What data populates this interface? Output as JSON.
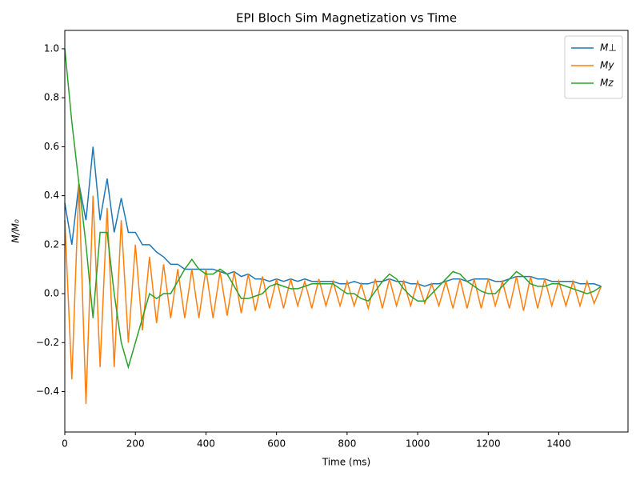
{
  "chart_data": {
    "type": "line",
    "title": "EPI Bloch Sim Magnetization vs Time",
    "xlabel": "Time (ms)",
    "ylabel": "M/M₀",
    "x": [
      0,
      20,
      40,
      60,
      80,
      100,
      120,
      140,
      160,
      180,
      200,
      220,
      240,
      260,
      280,
      300,
      320,
      340,
      360,
      380,
      400,
      420,
      440,
      460,
      480,
      500,
      520,
      540,
      560,
      580,
      600,
      620,
      640,
      660,
      680,
      700,
      720,
      740,
      760,
      780,
      800,
      820,
      840,
      860,
      880,
      900,
      920,
      940,
      960,
      980,
      1000,
      1020,
      1040,
      1060,
      1080,
      1100,
      1120,
      1140,
      1160,
      1180,
      1200,
      1220,
      1240,
      1260,
      1280,
      1300,
      1320,
      1340,
      1360,
      1380,
      1400,
      1420,
      1440,
      1460,
      1480,
      1500,
      1520
    ],
    "series": [
      {
        "name": "M⊥",
        "color": "#1f77b4",
        "values": [
          0.37,
          0.2,
          0.45,
          0.3,
          0.6,
          0.3,
          0.47,
          0.25,
          0.39,
          0.25,
          0.25,
          0.2,
          0.2,
          0.17,
          0.15,
          0.12,
          0.12,
          0.1,
          0.1,
          0.1,
          0.1,
          0.1,
          0.09,
          0.08,
          0.09,
          0.07,
          0.08,
          0.06,
          0.06,
          0.05,
          0.06,
          0.05,
          0.06,
          0.05,
          0.06,
          0.05,
          0.05,
          0.05,
          0.05,
          0.04,
          0.04,
          0.05,
          0.04,
          0.04,
          0.05,
          0.05,
          0.06,
          0.05,
          0.05,
          0.04,
          0.04,
          0.03,
          0.04,
          0.04,
          0.05,
          0.06,
          0.06,
          0.05,
          0.06,
          0.06,
          0.06,
          0.05,
          0.05,
          0.06,
          0.07,
          0.07,
          0.07,
          0.06,
          0.06,
          0.05,
          0.05,
          0.05,
          0.05,
          0.04,
          0.04,
          0.04,
          0.03
        ]
      },
      {
        "name": "My",
        "color": "#ff7f0e",
        "values": [
          0.3,
          -0.35,
          0.45,
          -0.45,
          0.4,
          -0.3,
          0.35,
          -0.3,
          0.3,
          -0.2,
          0.2,
          -0.15,
          0.15,
          -0.12,
          0.12,
          -0.1,
          0.1,
          -0.1,
          0.1,
          -0.1,
          0.1,
          -0.1,
          0.09,
          -0.09,
          0.09,
          -0.08,
          0.08,
          -0.07,
          0.07,
          -0.06,
          0.06,
          -0.06,
          0.06,
          -0.05,
          0.05,
          -0.06,
          0.06,
          -0.05,
          0.05,
          -0.05,
          0.05,
          -0.05,
          0.04,
          -0.06,
          0.06,
          -0.06,
          0.06,
          -0.05,
          0.05,
          -0.05,
          0.05,
          -0.04,
          0.04,
          -0.05,
          0.05,
          -0.06,
          0.06,
          -0.06,
          0.06,
          -0.06,
          0.06,
          -0.05,
          0.05,
          -0.06,
          0.07,
          -0.07,
          0.07,
          -0.06,
          0.06,
          -0.05,
          0.05,
          -0.05,
          0.05,
          -0.05,
          0.05,
          -0.04,
          0.03
        ]
      },
      {
        "name": "Mz",
        "color": "#2ca02c",
        "values": [
          1.0,
          0.7,
          0.45,
          0.2,
          -0.1,
          0.25,
          0.25,
          0.0,
          -0.2,
          -0.3,
          -0.2,
          -0.1,
          0.0,
          -0.02,
          0.0,
          0.0,
          0.05,
          0.1,
          0.14,
          0.1,
          0.08,
          0.08,
          0.1,
          0.08,
          0.03,
          -0.02,
          -0.02,
          -0.01,
          0.0,
          0.03,
          0.04,
          0.03,
          0.02,
          0.02,
          0.03,
          0.04,
          0.04,
          0.04,
          0.04,
          0.02,
          0.0,
          0.0,
          -0.02,
          -0.03,
          0.01,
          0.05,
          0.08,
          0.06,
          0.02,
          -0.01,
          -0.03,
          -0.03,
          0.0,
          0.03,
          0.06,
          0.09,
          0.08,
          0.05,
          0.03,
          0.01,
          0.0,
          0.0,
          0.03,
          0.06,
          0.09,
          0.07,
          0.04,
          0.03,
          0.03,
          0.04,
          0.04,
          0.03,
          0.02,
          0.01,
          0.0,
          0.01,
          0.03
        ]
      }
    ],
    "xlim": [
      0,
      1596
    ],
    "ylim": [
      -0.565,
      1.075
    ],
    "xticks": [
      0,
      200,
      400,
      600,
      800,
      1000,
      1200,
      1400
    ],
    "yticks": [
      {
        "value": -0.4,
        "label": "−0.4"
      },
      {
        "value": -0.2,
        "label": "−0.2"
      },
      {
        "value": 0,
        "label": "0.0"
      },
      0.2,
      0.4,
      0.6,
      0.8,
      {
        "value": 1,
        "label": "1.0"
      }
    ],
    "legend": "upper right"
  }
}
